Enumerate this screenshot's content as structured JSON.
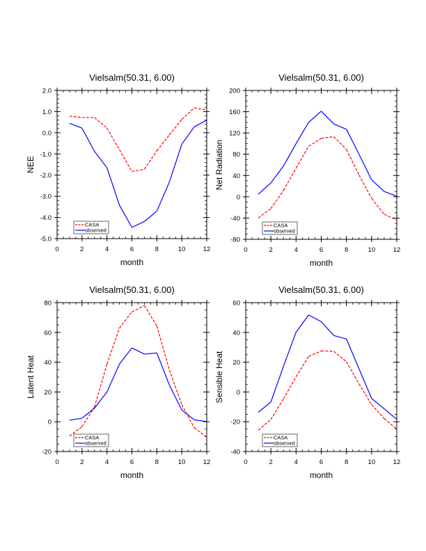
{
  "chart_data": [
    {
      "type": "line",
      "title": "Vielsalm(50.31, 6.00)",
      "xlabel": "month",
      "ylabel": "NEE",
      "xlim": [
        0,
        12
      ],
      "ylim": [
        -5.0,
        2.0
      ],
      "xticks": [
        "0",
        "2",
        "4",
        "6",
        "8",
        "10",
        "12"
      ],
      "yticks": [
        "-5.0",
        "-4.0",
        "-3.0",
        "-2.0",
        "-1.0",
        "0.0",
        "1.0",
        "2.0"
      ],
      "ytick_values": [
        -5,
        -4,
        -3,
        -2,
        -1,
        0,
        1,
        2
      ],
      "y_minor_per_major": 5,
      "grid": false,
      "legend": "bottom-left",
      "x": [
        1,
        2,
        3,
        4,
        5,
        6,
        7,
        8,
        9,
        10,
        11,
        12
      ],
      "series": [
        {
          "name": "CASA",
          "color": "#ff0000",
          "style": "dashed",
          "values": [
            0.79,
            0.72,
            0.72,
            0.22,
            -0.8,
            -1.83,
            -1.72,
            -0.85,
            -0.1,
            0.63,
            1.18,
            1.07
          ]
        },
        {
          "name": "observed",
          "color": "#0000ff",
          "style": "solid",
          "values": [
            0.45,
            0.22,
            -0.88,
            -1.65,
            -3.42,
            -4.47,
            -4.19,
            -3.7,
            -2.33,
            -0.54,
            0.28,
            0.6
          ]
        }
      ]
    },
    {
      "type": "line",
      "title": "Vielsalm(50.31, 6.00)",
      "xlabel": "month",
      "ylabel": "Net Radiation",
      "xlim": [
        0,
        12
      ],
      "ylim": [
        -80,
        200
      ],
      "xticks": [
        "0",
        "2",
        "4",
        "6",
        "8",
        "10",
        "12"
      ],
      "yticks": [
        "-80",
        "-40",
        "0",
        "40",
        "80",
        "120",
        "160",
        "200"
      ],
      "ytick_values": [
        -80,
        -40,
        0,
        40,
        80,
        120,
        160,
        200
      ],
      "y_minor_per_major": 4,
      "grid": false,
      "legend": "bottom-left",
      "x": [
        1,
        2,
        3,
        4,
        5,
        6,
        7,
        8,
        9,
        10,
        11,
        12
      ],
      "series": [
        {
          "name": "CASA",
          "color": "#ff0000",
          "style": "dashed",
          "values": [
            -40,
            -22,
            12,
            54,
            95,
            110,
            113,
            89,
            41,
            -3,
            -33,
            -44
          ]
        },
        {
          "name": "observed",
          "color": "#0000ff",
          "style": "solid",
          "values": [
            5,
            26,
            58,
            100,
            140,
            161,
            137,
            127,
            80,
            32,
            10,
            1
          ]
        }
      ]
    },
    {
      "type": "line",
      "title": "Vielsalm(50.31, 6.00)",
      "xlabel": "month",
      "ylabel": "Latent Heat",
      "xlim": [
        0,
        12
      ],
      "ylim": [
        -20,
        80
      ],
      "xticks": [
        "0",
        "2",
        "4",
        "6",
        "8",
        "10",
        "12"
      ],
      "yticks": [
        "-20",
        "0",
        "20",
        "40",
        "60",
        "80"
      ],
      "ytick_values": [
        -20,
        0,
        20,
        40,
        60,
        80
      ],
      "y_minor_per_major": 4,
      "grid": false,
      "legend": "bottom-left",
      "x": [
        1,
        2,
        3,
        4,
        5,
        6,
        7,
        8,
        9,
        10,
        11,
        12
      ],
      "series": [
        {
          "name": "CASA",
          "color": "#ff0000",
          "style": "dashed",
          "values": [
            -9.6,
            -3.3,
            9.9,
            38.7,
            62.9,
            73.8,
            78.0,
            64.4,
            34.8,
            11.5,
            -4.1,
            -10.3
          ]
        },
        {
          "name": "observed",
          "color": "#0000ff",
          "style": "solid",
          "values": [
            1.0,
            2.4,
            9.1,
            20.0,
            38.7,
            49.6,
            45.4,
            46.2,
            24.7,
            7.9,
            1.3,
            0.1
          ]
        }
      ]
    },
    {
      "type": "line",
      "title": "Vielsalm(50.31, 6.00)",
      "xlabel": "month",
      "ylabel": "Sensible Heat",
      "xlim": [
        0,
        12
      ],
      "ylim": [
        -40,
        60
      ],
      "xticks": [
        "0",
        "2",
        "4",
        "6",
        "8",
        "10",
        "12"
      ],
      "yticks": [
        "-40",
        "-20",
        "0",
        "20",
        "40",
        "60"
      ],
      "ytick_values": [
        -40,
        -20,
        0,
        20,
        40,
        60
      ],
      "y_minor_per_major": 4,
      "grid": false,
      "legend": "bottom-left",
      "x": [
        1,
        2,
        3,
        4,
        5,
        6,
        7,
        8,
        9,
        10,
        11,
        12
      ],
      "series": [
        {
          "name": "CASA",
          "color": "#ff0000",
          "style": "dashed",
          "values": [
            -25.7,
            -18.4,
            -4.6,
            10.2,
            23.9,
            27.6,
            27.3,
            20.3,
            5.5,
            -8.5,
            -17.9,
            -24.9
          ]
        },
        {
          "name": "observed",
          "color": "#0000ff",
          "style": "solid",
          "values": [
            -13.7,
            -6.7,
            17.2,
            40.2,
            51.7,
            47.2,
            37.9,
            35.6,
            15.6,
            -4.3,
            -11.3,
            -18.4
          ]
        }
      ]
    }
  ]
}
